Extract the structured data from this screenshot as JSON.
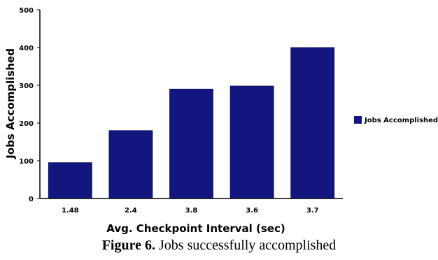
{
  "chart_data": {
    "type": "bar",
    "categories": [
      "1.48",
      "2.4",
      "3.8",
      "3.6",
      "3.7"
    ],
    "series": [
      {
        "name": "Jobs Accomplished",
        "values": [
          95,
          180,
          290,
          298,
          400
        ]
      }
    ],
    "xlabel": "Avg. Checkpoint Interval (sec)",
    "ylabel": "Jobs Accomplished",
    "ylim": [
      0,
      500
    ],
    "yticks": [
      "0",
      "100",
      "200",
      "300",
      "400",
      "500"
    ],
    "grid": false,
    "legend": "right",
    "colors": {
      "bar": "#13167f",
      "axis": "#000000"
    }
  },
  "caption": {
    "label": "Figure 6.",
    "text": " Jobs successfully accomplished"
  }
}
